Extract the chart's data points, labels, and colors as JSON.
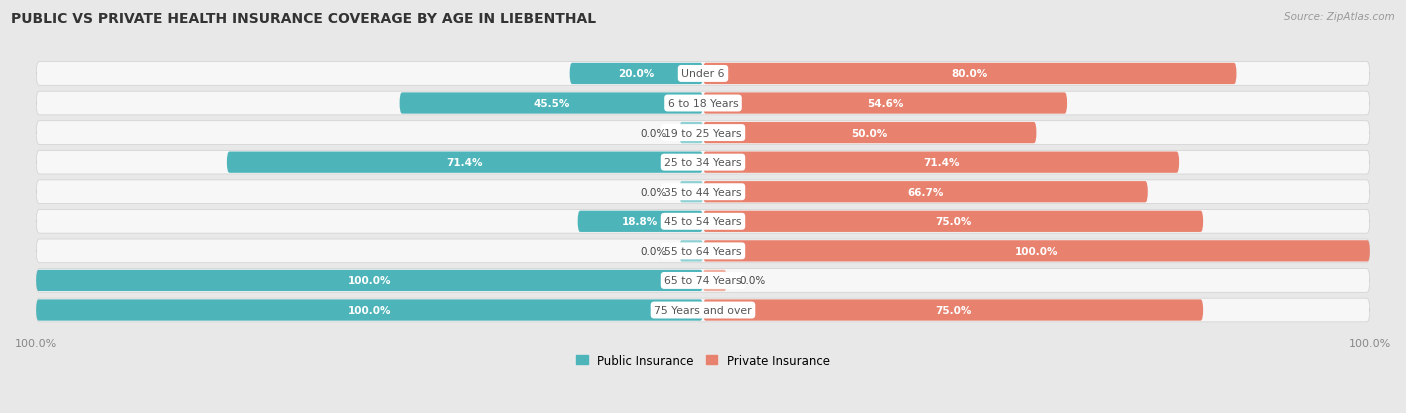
{
  "title": "PUBLIC VS PRIVATE HEALTH INSURANCE COVERAGE BY AGE IN LIEBENTHAL",
  "source": "Source: ZipAtlas.com",
  "categories": [
    "Under 6",
    "6 to 18 Years",
    "19 to 25 Years",
    "25 to 34 Years",
    "35 to 44 Years",
    "45 to 54 Years",
    "55 to 64 Years",
    "65 to 74 Years",
    "75 Years and over"
  ],
  "public_values": [
    20.0,
    45.5,
    0.0,
    71.4,
    0.0,
    18.8,
    0.0,
    100.0,
    100.0
  ],
  "private_values": [
    80.0,
    54.6,
    50.0,
    71.4,
    66.7,
    75.0,
    100.0,
    0.0,
    75.0
  ],
  "public_color": "#4db5ba",
  "public_color_light": "#8ed0d4",
  "private_color": "#e8826e",
  "private_color_light": "#f0aea0",
  "public_label": "Public Insurance",
  "private_label": "Private Insurance",
  "bg_color": "#e8e8e8",
  "bar_bg_color": "#f7f7f7",
  "row_separator_color": "#d0d0d0",
  "title_color": "#333333",
  "white_label_color": "#ffffff",
  "dark_label_color": "#444444",
  "center_label_color": "#555555",
  "axis_label_color": "#888888",
  "bar_height": 0.72,
  "figsize": [
    14.06,
    4.14
  ],
  "dpi": 100
}
